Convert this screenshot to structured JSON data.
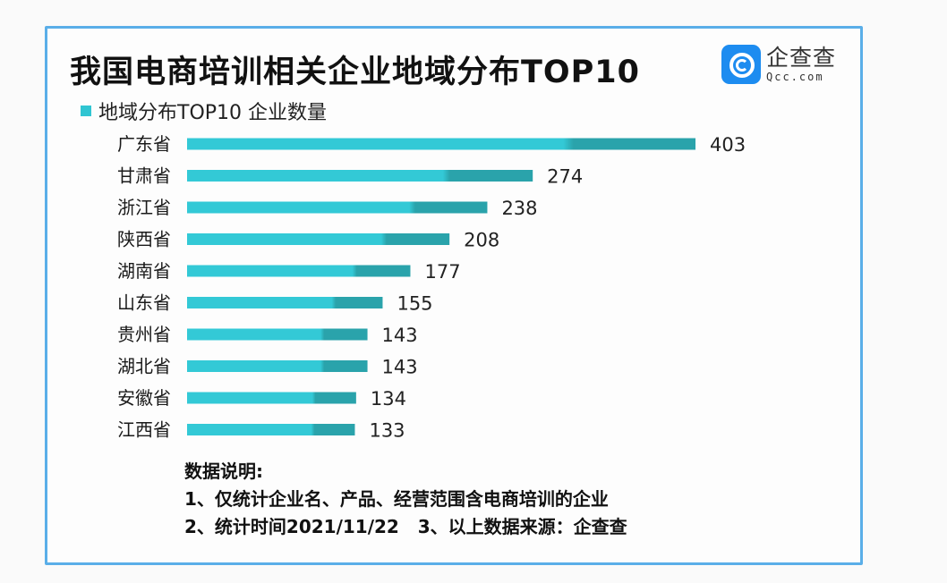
{
  "title": "我国电商培训相关企业地域分布TOP10",
  "logo": {
    "cn": "企查查",
    "en": "Qcc.com"
  },
  "colors": {
    "bar_light": "#33c9d6",
    "bar_dark": "#2aa3ab",
    "frame": "#5aaee8",
    "logo": "#1d8cf0"
  },
  "chart_data": {
    "type": "bar",
    "orientation": "horizontal",
    "title": "我国电商培训相关企业地域分布TOP10",
    "legend": "地域分布TOP10 企业数量",
    "legend_position": "top-left",
    "grid": false,
    "categories": [
      "广东省",
      "甘肃省",
      "浙江省",
      "陕西省",
      "湖南省",
      "山东省",
      "贵州省",
      "湖北省",
      "安徽省",
      "江西省"
    ],
    "series": [
      {
        "name": "地域分布TOP10 企业数量",
        "values": [
          403,
          274,
          238,
          208,
          177,
          155,
          143,
          143,
          134,
          133
        ]
      }
    ],
    "xlim": [
      0,
      403
    ]
  },
  "notes": {
    "heading": "数据说明:",
    "line1": "1、仅统计企业名、产品、经营范围含电商培训的企业",
    "line2": "2、统计时间2021/11/22   3、以上数据来源：企查查"
  }
}
